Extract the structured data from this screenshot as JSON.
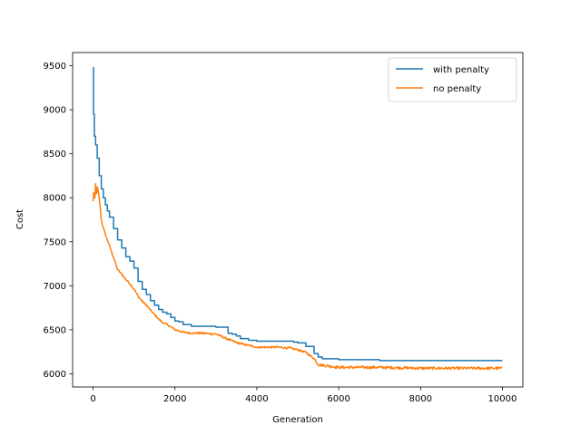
{
  "chart_data": {
    "type": "line",
    "title": "",
    "xlabel": "Generation",
    "ylabel": "Cost",
    "xlim": [
      -500,
      10500
    ],
    "ylim": [
      5850,
      9650
    ],
    "xticks": [
      0,
      2000,
      4000,
      6000,
      8000,
      10000
    ],
    "yticks": [
      6000,
      6500,
      7000,
      7500,
      8000,
      8500,
      9000,
      9500
    ],
    "grid": false,
    "legend_position": "top-right",
    "series": [
      {
        "name": "with penalty",
        "color": "#1f77b4",
        "style": "step",
        "x": [
          0,
          10,
          30,
          60,
          100,
          150,
          200,
          250,
          300,
          350,
          400,
          500,
          600,
          700,
          800,
          900,
          1000,
          1100,
          1200,
          1300,
          1400,
          1500,
          1600,
          1700,
          1800,
          1900,
          2000,
          2100,
          2200,
          2400,
          2600,
          3000,
          3300,
          3400,
          3500,
          3600,
          3800,
          4000,
          4800,
          4900,
          5000,
          5200,
          5400,
          5500,
          5600,
          6000,
          6900,
          7000,
          8000,
          10000
        ],
        "y": [
          9480,
          8950,
          8700,
          8600,
          8450,
          8250,
          8100,
          8000,
          7920,
          7850,
          7780,
          7650,
          7520,
          7430,
          7330,
          7280,
          7200,
          7050,
          6960,
          6900,
          6830,
          6780,
          6730,
          6700,
          6680,
          6640,
          6600,
          6590,
          6560,
          6540,
          6540,
          6530,
          6460,
          6450,
          6430,
          6400,
          6380,
          6370,
          6370,
          6360,
          6350,
          6310,
          6230,
          6190,
          6170,
          6160,
          6160,
          6150,
          6150,
          6150
        ]
      },
      {
        "name": "no penalty",
        "color": "#ff7f0e",
        "style": "noisy",
        "x": [
          0,
          20,
          40,
          60,
          80,
          100,
          130,
          160,
          200,
          250,
          300,
          350,
          400,
          500,
          600,
          700,
          800,
          900,
          1000,
          1100,
          1200,
          1300,
          1400,
          1500,
          1600,
          1700,
          1800,
          1900,
          2000,
          2200,
          2400,
          2600,
          3000,
          3300,
          3400,
          3600,
          3800,
          4000,
          4500,
          4800,
          5000,
          5200,
          5400,
          5500,
          6000,
          7000,
          8000,
          9000,
          10000
        ],
        "y": [
          7950,
          8100,
          7920,
          8150,
          8000,
          8120,
          8050,
          7950,
          7750,
          7650,
          7580,
          7520,
          7450,
          7320,
          7180,
          7130,
          7070,
          7020,
          6960,
          6880,
          6820,
          6780,
          6720,
          6670,
          6620,
          6580,
          6560,
          6530,
          6500,
          6470,
          6460,
          6460,
          6450,
          6390,
          6370,
          6340,
          6320,
          6300,
          6300,
          6290,
          6270,
          6240,
          6170,
          6100,
          6070,
          6070,
          6060,
          6060,
          6060
        ]
      }
    ]
  }
}
